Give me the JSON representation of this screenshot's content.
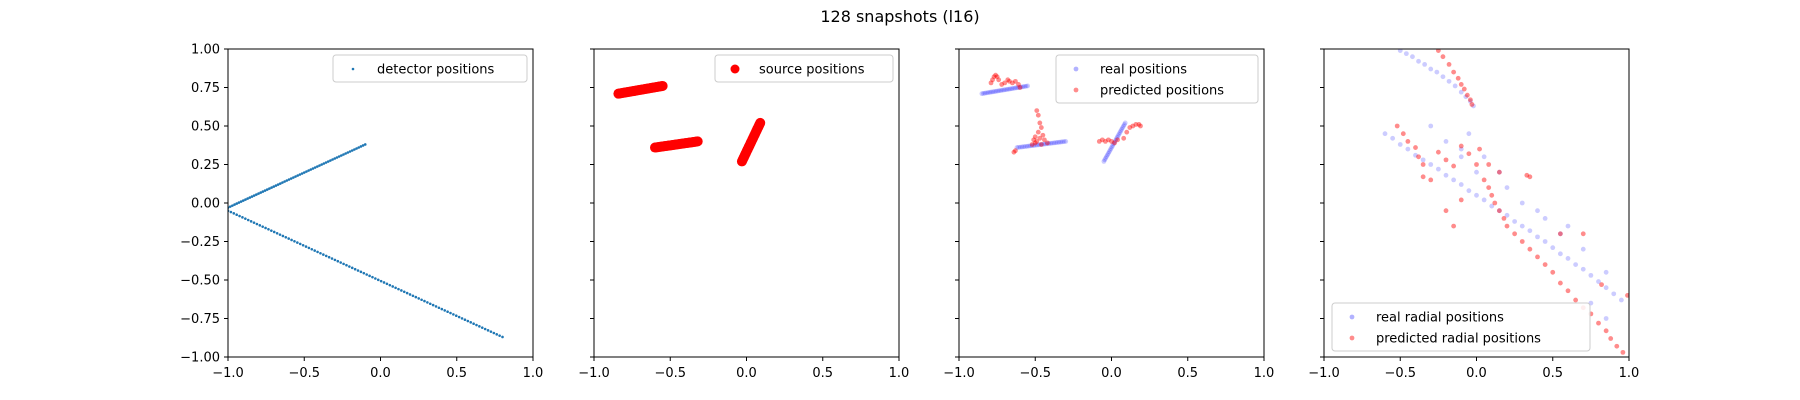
{
  "figure": {
    "suptitle": "128 snapshots (l16)"
  },
  "chart_data": [
    {
      "type": "scatter",
      "panel": 1,
      "xlim": [
        -1.0,
        1.0
      ],
      "ylim": [
        -1.0,
        1.0
      ],
      "xticks": [
        "−1.0",
        "−0.5",
        "0.0",
        "0.5",
        "1.0"
      ],
      "yticks": [
        "1.00",
        "0.75",
        "0.50",
        "0.25",
        "0.00",
        "−0.25",
        "−0.50",
        "−0.75",
        "−1.00"
      ],
      "legend_loc": "upper right",
      "series": [
        {
          "name": "detector positions",
          "color": "#1f77b4",
          "marker": "dot-small",
          "segments": [
            {
              "from": [
                -1.0,
                -0.03
              ],
              "to": [
                -0.1,
                0.38
              ],
              "n": 64
            },
            {
              "from": [
                -1.0,
                -0.05
              ],
              "to": [
                0.8,
                -0.87
              ],
              "n": 96
            }
          ]
        }
      ]
    },
    {
      "type": "scatter",
      "panel": 2,
      "xlim": [
        -1.0,
        1.0
      ],
      "ylim": [
        -1.0,
        1.0
      ],
      "xticks": [
        "−1.0",
        "−0.5",
        "0.0",
        "0.5",
        "1.0"
      ],
      "legend_loc": "upper right",
      "series": [
        {
          "name": "source positions",
          "color": "#ff0000",
          "marker": "dot-large",
          "segments": [
            {
              "from": [
                -0.84,
                0.71
              ],
              "to": [
                -0.55,
                0.76
              ],
              "n": 40
            },
            {
              "from": [
                -0.6,
                0.36
              ],
              "to": [
                -0.32,
                0.4
              ],
              "n": 40
            },
            {
              "from": [
                -0.03,
                0.27
              ],
              "to": [
                0.09,
                0.52
              ],
              "n": 30
            }
          ]
        }
      ]
    },
    {
      "type": "scatter",
      "panel": 3,
      "xlim": [
        -1.0,
        1.0
      ],
      "ylim": [
        -1.0,
        1.0
      ],
      "xticks": [
        "−1.0",
        "−0.5",
        "0.0",
        "0.5",
        "1.0"
      ],
      "legend_loc": "upper right",
      "series": [
        {
          "name": "real positions",
          "color": "#0000ff",
          "marker": "dot-faint",
          "segments": [
            {
              "from": [
                -0.85,
                0.71
              ],
              "to": [
                -0.55,
                0.76
              ],
              "n": 30
            },
            {
              "from": [
                -0.62,
                0.36
              ],
              "to": [
                -0.3,
                0.4
              ],
              "n": 30
            },
            {
              "from": [
                -0.05,
                0.27
              ],
              "to": [
                0.09,
                0.52
              ],
              "n": 25
            }
          ]
        },
        {
          "name": "predicted positions",
          "color": "#ff0000",
          "marker": "dot-medium",
          "points": [
            [
              -0.79,
              0.78
            ],
            [
              -0.78,
              0.8
            ],
            [
              -0.77,
              0.82
            ],
            [
              -0.76,
              0.83
            ],
            [
              -0.75,
              0.82
            ],
            [
              -0.74,
              0.8
            ],
            [
              -0.72,
              0.77
            ],
            [
              -0.7,
              0.78
            ],
            [
              -0.68,
              0.8
            ],
            [
              -0.67,
              0.79
            ],
            [
              -0.65,
              0.78
            ],
            [
              -0.63,
              0.79
            ],
            [
              -0.61,
              0.77
            ],
            [
              -0.6,
              0.75
            ],
            [
              -0.49,
              0.6
            ],
            [
              -0.48,
              0.57
            ],
            [
              -0.47,
              0.52
            ],
            [
              -0.46,
              0.49
            ],
            [
              -0.48,
              0.46
            ],
            [
              -0.5,
              0.43
            ],
            [
              -0.51,
              0.41
            ],
            [
              -0.49,
              0.4
            ],
            [
              -0.47,
              0.42
            ],
            [
              -0.45,
              0.44
            ],
            [
              -0.44,
              0.41
            ],
            [
              -0.46,
              0.38
            ],
            [
              -0.5,
              0.39
            ],
            [
              -0.52,
              0.38
            ],
            [
              -0.42,
              0.39
            ],
            [
              -0.64,
              0.33
            ],
            [
              -0.63,
              0.34
            ],
            [
              -0.08,
              0.4
            ],
            [
              -0.06,
              0.41
            ],
            [
              -0.04,
              0.4
            ],
            [
              -0.02,
              0.41
            ],
            [
              0.0,
              0.4
            ],
            [
              0.02,
              0.39
            ],
            [
              0.04,
              0.41
            ],
            [
              0.08,
              0.42
            ],
            [
              0.1,
              0.46
            ],
            [
              0.12,
              0.49
            ],
            [
              0.14,
              0.5
            ],
            [
              0.16,
              0.51
            ],
            [
              0.18,
              0.51
            ],
            [
              0.19,
              0.5
            ]
          ]
        }
      ]
    },
    {
      "type": "scatter",
      "panel": 4,
      "xlim": [
        -1.0,
        1.0
      ],
      "ylim": [
        -1.0,
        1.0
      ],
      "xticks": [
        "−1.0",
        "−0.5",
        "0.0",
        "0.5",
        "1.0"
      ],
      "legend_loc": "lower left",
      "series": [
        {
          "name": "real radial positions",
          "color": "#0000ff",
          "marker": "dot-faint",
          "points": [
            [
              -0.5,
              0.99
            ],
            [
              -0.46,
              0.97
            ],
            [
              -0.42,
              0.95
            ],
            [
              -0.38,
              0.92
            ],
            [
              -0.34,
              0.9
            ],
            [
              -0.3,
              0.87
            ],
            [
              -0.26,
              0.85
            ],
            [
              -0.22,
              0.82
            ],
            [
              -0.18,
              0.79
            ],
            [
              -0.14,
              0.76
            ],
            [
              -0.1,
              0.72
            ],
            [
              -0.07,
              0.69
            ],
            [
              -0.04,
              0.66
            ],
            [
              -0.02,
              0.63
            ],
            [
              -0.6,
              0.45
            ],
            [
              -0.55,
              0.42
            ],
            [
              -0.5,
              0.38
            ],
            [
              -0.45,
              0.35
            ],
            [
              -0.4,
              0.31
            ],
            [
              -0.35,
              0.28
            ],
            [
              -0.3,
              0.25
            ],
            [
              -0.25,
              0.22
            ],
            [
              -0.2,
              0.18
            ],
            [
              -0.15,
              0.15
            ],
            [
              -0.1,
              0.12
            ],
            [
              -0.05,
              0.08
            ],
            [
              0.0,
              0.05
            ],
            [
              0.05,
              0.02
            ],
            [
              0.1,
              -0.02
            ],
            [
              0.15,
              -0.05
            ],
            [
              0.2,
              -0.08
            ],
            [
              0.25,
              -0.12
            ],
            [
              0.3,
              -0.15
            ],
            [
              0.35,
              -0.18
            ],
            [
              0.4,
              -0.22
            ],
            [
              0.45,
              -0.25
            ],
            [
              0.5,
              -0.29
            ],
            [
              0.55,
              -0.33
            ],
            [
              0.6,
              -0.36
            ],
            [
              0.65,
              -0.4
            ],
            [
              0.7,
              -0.43
            ],
            [
              0.75,
              -0.47
            ],
            [
              0.8,
              -0.51
            ],
            [
              0.85,
              -0.55
            ],
            [
              0.9,
              -0.59
            ],
            [
              0.95,
              -0.63
            ],
            [
              -0.3,
              0.5
            ],
            [
              -0.2,
              0.4
            ],
            [
              -0.1,
              0.3
            ],
            [
              0.0,
              0.2
            ],
            [
              0.2,
              0.1
            ],
            [
              0.3,
              0.0
            ],
            [
              0.45,
              -0.1
            ],
            [
              0.55,
              -0.2
            ],
            [
              0.7,
              -0.3
            ],
            [
              0.85,
              -0.45
            ],
            [
              0.05,
              0.3
            ],
            [
              0.15,
              0.2
            ],
            [
              -0.05,
              0.45
            ],
            [
              0.6,
              -0.15
            ],
            [
              0.75,
              -0.65
            ],
            [
              0.85,
              -0.75
            ],
            [
              0.4,
              -0.05
            ],
            [
              -0.1,
              0.35
            ]
          ]
        },
        {
          "name": "predicted radial positions",
          "color": "#ff0000",
          "marker": "dot-medium",
          "points": [
            [
              -0.25,
              0.99
            ],
            [
              -0.22,
              0.95
            ],
            [
              -0.18,
              0.9
            ],
            [
              -0.15,
              0.85
            ],
            [
              -0.12,
              0.81
            ],
            [
              -0.1,
              0.77
            ],
            [
              -0.08,
              0.74
            ],
            [
              -0.06,
              0.7
            ],
            [
              -0.04,
              0.67
            ],
            [
              -0.03,
              0.64
            ],
            [
              -0.52,
              0.5
            ],
            [
              -0.48,
              0.45
            ],
            [
              -0.45,
              0.4
            ],
            [
              -0.4,
              0.36
            ],
            [
              -0.38,
              0.3
            ],
            [
              -0.35,
              0.25
            ],
            [
              -0.3,
              0.15
            ],
            [
              -0.25,
              0.33
            ],
            [
              -0.2,
              0.28
            ],
            [
              -0.15,
              0.24
            ],
            [
              -0.1,
              0.37
            ],
            [
              -0.05,
              0.32
            ],
            [
              0.0,
              0.25
            ],
            [
              0.05,
              0.15
            ],
            [
              0.08,
              0.1
            ],
            [
              0.1,
              0.05
            ],
            [
              0.12,
              0.0
            ],
            [
              0.15,
              -0.05
            ],
            [
              0.18,
              -0.1
            ],
            [
              0.2,
              -0.15
            ],
            [
              0.25,
              -0.2
            ],
            [
              0.3,
              -0.25
            ],
            [
              0.35,
              -0.3
            ],
            [
              0.4,
              -0.35
            ],
            [
              0.45,
              -0.4
            ],
            [
              0.5,
              -0.45
            ],
            [
              0.55,
              -0.52
            ],
            [
              0.6,
              -0.57
            ],
            [
              0.65,
              -0.63
            ],
            [
              0.7,
              -0.68
            ],
            [
              0.75,
              -0.72
            ],
            [
              0.8,
              -0.78
            ],
            [
              0.85,
              -0.83
            ],
            [
              0.88,
              -0.88
            ],
            [
              0.92,
              -0.93
            ],
            [
              0.96,
              -0.97
            ],
            [
              0.99,
              -0.6
            ],
            [
              0.82,
              -0.53
            ],
            [
              0.7,
              -0.2
            ],
            [
              0.55,
              -0.2
            ],
            [
              0.35,
              0.17
            ],
            [
              0.33,
              0.18
            ],
            [
              0.15,
              0.2
            ],
            [
              0.08,
              0.25
            ],
            [
              -0.1,
              0.02
            ],
            [
              -0.2,
              -0.05
            ],
            [
              -0.15,
              -0.15
            ],
            [
              0.02,
              0.35
            ],
            [
              -0.35,
              0.17
            ]
          ]
        }
      ]
    }
  ]
}
